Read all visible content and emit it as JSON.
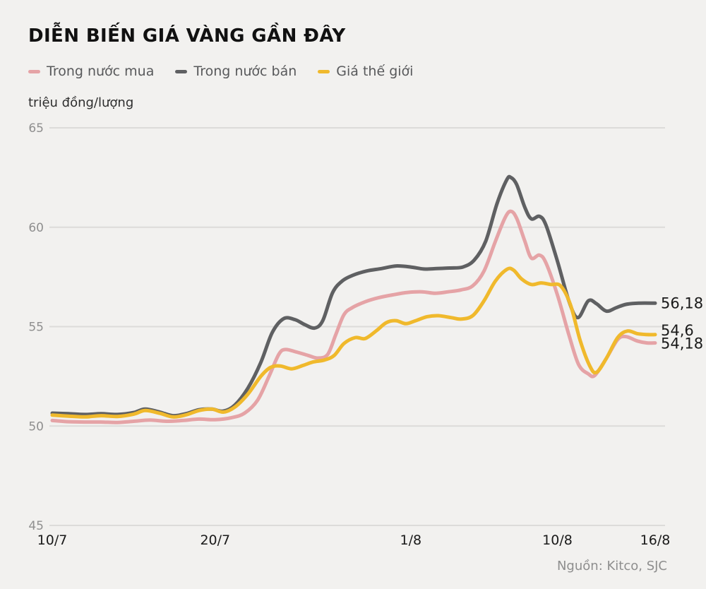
{
  "header": {
    "title": "DIỄN BIẾN GIÁ VÀNG GẦN ĐÂY",
    "unit_label": "triệu đồng/lượng",
    "source": "Nguồn: Kitco, SJC"
  },
  "colors": {
    "background": "#f2f1ef",
    "gridline": "#dcdbd9",
    "buy_line": "#e5a3a6",
    "sell_line": "#5f6062",
    "world_line": "#f0b92c",
    "axis_text": "#8f8f8f",
    "label_text": "#1a1a1a"
  },
  "chart_data": {
    "type": "line",
    "title": "DIỄN BIẾN GIÁ VÀNG GẦN ĐÂY",
    "ylabel": "triệu đồng/lượng",
    "xlabel": "",
    "grid": true,
    "legend_position": "top",
    "source": "Nguồn: Kitco, SJC",
    "x_axis": {
      "range_days": [
        0,
        37
      ],
      "ticks": [
        {
          "label": "10/7",
          "day": 0
        },
        {
          "label": "20/7",
          "day": 10
        },
        {
          "label": "1/8",
          "day": 22
        },
        {
          "label": "10/8",
          "day": 31
        },
        {
          "label": "16/8",
          "day": 37
        }
      ]
    },
    "y_axis": {
      "range": [
        45,
        65
      ],
      "ticks": [
        65,
        60,
        55,
        50,
        45
      ],
      "unit": "triệu đồng/lượng"
    },
    "series": [
      {
        "name": "Trong nước mua",
        "color": "#e5a3a6",
        "end_label": "54,18",
        "end_label_dy": 1,
        "points": [
          [
            0,
            50.28
          ],
          [
            1,
            50.22
          ],
          [
            2,
            50.2
          ],
          [
            3,
            50.2
          ],
          [
            4,
            50.18
          ],
          [
            5,
            50.24
          ],
          [
            6,
            50.3
          ],
          [
            7,
            50.24
          ],
          [
            8,
            50.28
          ],
          [
            9,
            50.35
          ],
          [
            10,
            50.32
          ],
          [
            11,
            50.42
          ],
          [
            11.8,
            50.65
          ],
          [
            12.6,
            51.3
          ],
          [
            13.3,
            52.5
          ],
          [
            13.9,
            53.6
          ],
          [
            14.3,
            53.85
          ],
          [
            15,
            53.72
          ],
          [
            15.7,
            53.55
          ],
          [
            16.3,
            53.42
          ],
          [
            16.9,
            53.6
          ],
          [
            17.4,
            54.6
          ],
          [
            17.9,
            55.6
          ],
          [
            18.4,
            55.95
          ],
          [
            19.2,
            56.25
          ],
          [
            20,
            56.45
          ],
          [
            20.9,
            56.6
          ],
          [
            21.8,
            56.72
          ],
          [
            22.7,
            56.75
          ],
          [
            23.5,
            56.68
          ],
          [
            24.3,
            56.75
          ],
          [
            25.1,
            56.85
          ],
          [
            25.8,
            57.05
          ],
          [
            26.5,
            57.8
          ],
          [
            27.2,
            59.3
          ],
          [
            27.8,
            60.5
          ],
          [
            28.15,
            60.8
          ],
          [
            28.5,
            60.45
          ],
          [
            29,
            59.3
          ],
          [
            29.4,
            58.45
          ],
          [
            29.9,
            58.6
          ],
          [
            30.3,
            58.2
          ],
          [
            31,
            56.6
          ],
          [
            31.7,
            54.6
          ],
          [
            32.3,
            53.1
          ],
          [
            32.9,
            52.62
          ],
          [
            33.3,
            52.55
          ],
          [
            34,
            53.4
          ],
          [
            34.7,
            54.35
          ],
          [
            35.2,
            54.5
          ],
          [
            35.9,
            54.28
          ],
          [
            36.5,
            54.18
          ],
          [
            37,
            54.18
          ]
        ]
      },
      {
        "name": "Trong nước bán",
        "color": "#5f6062",
        "end_label": "56,18",
        "end_label_dy": 0,
        "points": [
          [
            0,
            50.65
          ],
          [
            1,
            50.62
          ],
          [
            2,
            50.58
          ],
          [
            3,
            50.62
          ],
          [
            4,
            50.58
          ],
          [
            5,
            50.68
          ],
          [
            5.7,
            50.85
          ],
          [
            6.6,
            50.7
          ],
          [
            7.4,
            50.52
          ],
          [
            8.2,
            50.62
          ],
          [
            9,
            50.82
          ],
          [
            9.8,
            50.85
          ],
          [
            10.5,
            50.75
          ],
          [
            11.2,
            51.05
          ],
          [
            12,
            51.9
          ],
          [
            12.8,
            53.2
          ],
          [
            13.5,
            54.7
          ],
          [
            14.2,
            55.4
          ],
          [
            14.9,
            55.35
          ],
          [
            15.5,
            55.1
          ],
          [
            16.1,
            54.93
          ],
          [
            16.6,
            55.3
          ],
          [
            17.2,
            56.7
          ],
          [
            17.8,
            57.3
          ],
          [
            18.5,
            57.6
          ],
          [
            19.3,
            57.8
          ],
          [
            20.2,
            57.92
          ],
          [
            21.1,
            58.05
          ],
          [
            22,
            58.0
          ],
          [
            22.8,
            57.9
          ],
          [
            23.6,
            57.92
          ],
          [
            24.4,
            57.95
          ],
          [
            25.2,
            58.0
          ],
          [
            25.9,
            58.35
          ],
          [
            26.6,
            59.3
          ],
          [
            27.3,
            61.2
          ],
          [
            27.9,
            62.4
          ],
          [
            28.15,
            62.5
          ],
          [
            28.5,
            62.15
          ],
          [
            29,
            61.0
          ],
          [
            29.4,
            60.42
          ],
          [
            29.9,
            60.55
          ],
          [
            30.3,
            60.1
          ],
          [
            31,
            58.3
          ],
          [
            31.7,
            56.3
          ],
          [
            32.25,
            55.45
          ],
          [
            32.9,
            56.3
          ],
          [
            33.4,
            56.15
          ],
          [
            34,
            55.78
          ],
          [
            34.6,
            55.95
          ],
          [
            35.2,
            56.12
          ],
          [
            36,
            56.18
          ],
          [
            37,
            56.18
          ]
        ]
      },
      {
        "name": "Giá thế giới",
        "color": "#f0b92c",
        "end_label": "54,6",
        "end_label_dy": -6,
        "points": [
          [
            0,
            50.55
          ],
          [
            1,
            50.5
          ],
          [
            2,
            50.46
          ],
          [
            3,
            50.52
          ],
          [
            4,
            50.48
          ],
          [
            5,
            50.6
          ],
          [
            5.7,
            50.78
          ],
          [
            6.6,
            50.64
          ],
          [
            7.4,
            50.46
          ],
          [
            8.2,
            50.56
          ],
          [
            9,
            50.78
          ],
          [
            9.8,
            50.85
          ],
          [
            10.5,
            50.7
          ],
          [
            11.2,
            50.95
          ],
          [
            12,
            51.6
          ],
          [
            12.8,
            52.5
          ],
          [
            13.4,
            52.95
          ],
          [
            14,
            53.02
          ],
          [
            14.7,
            52.88
          ],
          [
            15.4,
            53.05
          ],
          [
            16,
            53.22
          ],
          [
            16.7,
            53.32
          ],
          [
            17.3,
            53.55
          ],
          [
            17.9,
            54.15
          ],
          [
            18.6,
            54.45
          ],
          [
            19.2,
            54.4
          ],
          [
            19.9,
            54.8
          ],
          [
            20.5,
            55.2
          ],
          [
            21.1,
            55.3
          ],
          [
            21.7,
            55.15
          ],
          [
            22.3,
            55.3
          ],
          [
            23,
            55.5
          ],
          [
            23.7,
            55.55
          ],
          [
            24.5,
            55.45
          ],
          [
            25.1,
            55.38
          ],
          [
            25.8,
            55.55
          ],
          [
            26.5,
            56.3
          ],
          [
            27.2,
            57.3
          ],
          [
            27.9,
            57.88
          ],
          [
            28.3,
            57.85
          ],
          [
            28.8,
            57.4
          ],
          [
            29.4,
            57.12
          ],
          [
            30,
            57.2
          ],
          [
            30.6,
            57.12
          ],
          [
            31.2,
            57.05
          ],
          [
            31.8,
            56.1
          ],
          [
            32.4,
            54.3
          ],
          [
            33,
            53.0
          ],
          [
            33.4,
            52.7
          ],
          [
            34,
            53.4
          ],
          [
            34.7,
            54.45
          ],
          [
            35.3,
            54.78
          ],
          [
            35.9,
            54.65
          ],
          [
            36.5,
            54.6
          ],
          [
            37,
            54.6
          ]
        ]
      }
    ]
  }
}
